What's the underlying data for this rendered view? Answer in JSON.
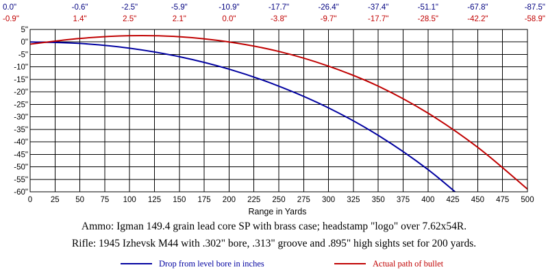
{
  "chart_data": {
    "type": "line",
    "xlabel": "Range in Yards",
    "ylabel": "",
    "xlim": [
      0,
      500
    ],
    "ylim": [
      -60,
      5
    ],
    "x_ticks": [
      0,
      25,
      50,
      75,
      100,
      125,
      150,
      175,
      200,
      225,
      250,
      275,
      300,
      325,
      350,
      375,
      400,
      425,
      450,
      475,
      500
    ],
    "y_ticks": [
      5,
      0,
      -5,
      -10,
      -15,
      -20,
      -25,
      -30,
      -35,
      -40,
      -45,
      -50,
      -55,
      -60
    ],
    "x_tick_labels": [
      "0",
      "25",
      "50",
      "75",
      "100",
      "125",
      "150",
      "175",
      "200",
      "225",
      "250",
      "275",
      "300",
      "325",
      "350",
      "375",
      "400",
      "425",
      "450",
      "475",
      "500"
    ],
    "y_tick_labels": [
      "5\"",
      "0\"",
      "-5\"",
      "-10\"",
      "-15\"",
      "-20\"",
      "-25\"",
      "-30\"",
      "-35\"",
      "-40\"",
      "-45\"",
      "-50\"",
      "-55\"",
      "-60\""
    ],
    "grid": true,
    "top_annotations": {
      "x": [
        0,
        50,
        100,
        150,
        200,
        250,
        300,
        350,
        400,
        450,
        500
      ],
      "drop_labels": [
        "0.0\"",
        "-0.6\"",
        "-2.5\"",
        "-5.9\"",
        "-10.9\"",
        "-17.7\"",
        "-26.4\"",
        "-37.4\"",
        "-51.1\"",
        "-67.8\"",
        "-87.5\""
      ],
      "path_labels": [
        "-0.9\"",
        "1.4\"",
        "2.5\"",
        "2.1\"",
        "0.0\"",
        "-3.8\"",
        "-9.7\"",
        "-17.7\"",
        "-28.5\"",
        "-42.2\"",
        "-58.9\""
      ]
    },
    "series": [
      {
        "name": "Drop from level bore in inches",
        "color": "#0000a0",
        "x": [
          0,
          50,
          100,
          150,
          200,
          250,
          300,
          350,
          400,
          450
        ],
        "y": [
          0.0,
          -0.6,
          -2.5,
          -5.9,
          -10.9,
          -17.7,
          -26.4,
          -37.4,
          -51.1,
          -67.8
        ]
      },
      {
        "name": "Actual path of bullet",
        "color": "#c00000",
        "x": [
          0,
          50,
          100,
          150,
          200,
          250,
          300,
          350,
          400,
          450,
          500
        ],
        "y": [
          -0.9,
          1.4,
          2.5,
          2.1,
          0.0,
          -3.8,
          -9.7,
          -17.7,
          -28.5,
          -42.2,
          -58.9
        ]
      }
    ],
    "caption_lines": [
      "Ammo:  Igman 149.4 grain lead core SP with brass case; headstamp \"logo\" over 7.62x54R.",
      "Rifle:  1945 Izhevsk M44 with .302\" bore, .313\" groove and .895\" high sights set for 200 yards."
    ],
    "legend": [
      {
        "label": "Drop from level bore in inches",
        "color": "#0000a0"
      },
      {
        "label": "Actual path of bullet",
        "color": "#c00000"
      }
    ],
    "colors": {
      "drop_labels": "#000080",
      "path_labels": "#c00000",
      "axis": "#000000",
      "grid": "#000000"
    }
  }
}
